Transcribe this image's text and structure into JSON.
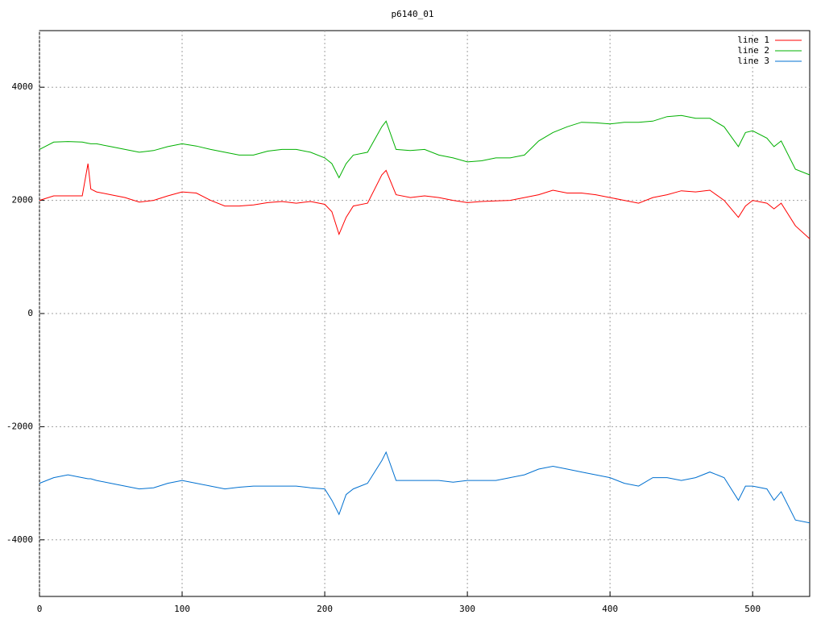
{
  "chart_data": {
    "type": "line",
    "title": "p6140_01",
    "x": [
      0,
      10,
      20,
      30,
      34,
      36,
      40,
      50,
      60,
      70,
      80,
      90,
      100,
      110,
      120,
      130,
      140,
      150,
      160,
      170,
      180,
      190,
      200,
      205,
      210,
      215,
      220,
      230,
      240,
      243,
      250,
      260,
      270,
      280,
      290,
      300,
      310,
      320,
      330,
      340,
      350,
      360,
      370,
      380,
      390,
      400,
      410,
      420,
      430,
      440,
      450,
      460,
      470,
      480,
      490,
      495,
      500,
      510,
      515,
      520,
      530,
      540
    ],
    "series": [
      {
        "name": "line 1",
        "color": "#ff0000",
        "values": [
          2000,
          2080,
          2080,
          2080,
          2650,
          2200,
          2150,
          2100,
          2050,
          1970,
          2000,
          2080,
          2150,
          2130,
          2000,
          1900,
          1900,
          1920,
          1960,
          1980,
          1950,
          1980,
          1930,
          1800,
          1400,
          1700,
          1900,
          1950,
          2450,
          2530,
          2100,
          2050,
          2080,
          2050,
          2000,
          1960,
          1980,
          1990,
          2000,
          2050,
          2100,
          2180,
          2130,
          2130,
          2100,
          2050,
          2000,
          1950,
          2050,
          2100,
          2170,
          2150,
          2180,
          2000,
          1700,
          1900,
          2000,
          1950,
          1850,
          1950,
          1550,
          1320
        ]
      },
      {
        "name": "line 2",
        "color": "#00b000",
        "values": [
          2900,
          3030,
          3040,
          3030,
          3010,
          3000,
          3000,
          2950,
          2900,
          2850,
          2880,
          2950,
          3000,
          2960,
          2900,
          2850,
          2800,
          2800,
          2870,
          2900,
          2900,
          2850,
          2750,
          2650,
          2400,
          2650,
          2800,
          2850,
          3300,
          3400,
          2900,
          2880,
          2900,
          2800,
          2750,
          2680,
          2700,
          2750,
          2750,
          2800,
          3050,
          3200,
          3300,
          3380,
          3370,
          3350,
          3380,
          3380,
          3400,
          3480,
          3500,
          3450,
          3450,
          3300,
          2950,
          3200,
          3230,
          3100,
          2950,
          3050,
          2550,
          2450
        ]
      },
      {
        "name": "line 3",
        "color": "#0070d0",
        "values": [
          -3000,
          -2900,
          -2850,
          -2900,
          -2920,
          -2920,
          -2950,
          -3000,
          -3050,
          -3100,
          -3080,
          -3000,
          -2950,
          -3000,
          -3050,
          -3100,
          -3070,
          -3050,
          -3050,
          -3050,
          -3050,
          -3080,
          -3100,
          -3300,
          -3550,
          -3200,
          -3100,
          -3000,
          -2600,
          -2450,
          -2950,
          -2950,
          -2950,
          -2950,
          -2980,
          -2950,
          -2950,
          -2950,
          -2900,
          -2850,
          -2750,
          -2700,
          -2750,
          -2800,
          -2850,
          -2900,
          -3000,
          -3050,
          -2900,
          -2900,
          -2950,
          -2900,
          -2800,
          -2900,
          -3300,
          -3050,
          -3050,
          -3100,
          -3300,
          -3150,
          -3650,
          -3700
        ]
      }
    ],
    "xlim": [
      0,
      540
    ],
    "ylim": [
      -5000,
      5000
    ],
    "xticks": [
      0,
      100,
      200,
      300,
      400,
      500
    ],
    "yticks": [
      -4000,
      -2000,
      0,
      2000,
      4000
    ],
    "grid": true,
    "legend": "upper right"
  }
}
